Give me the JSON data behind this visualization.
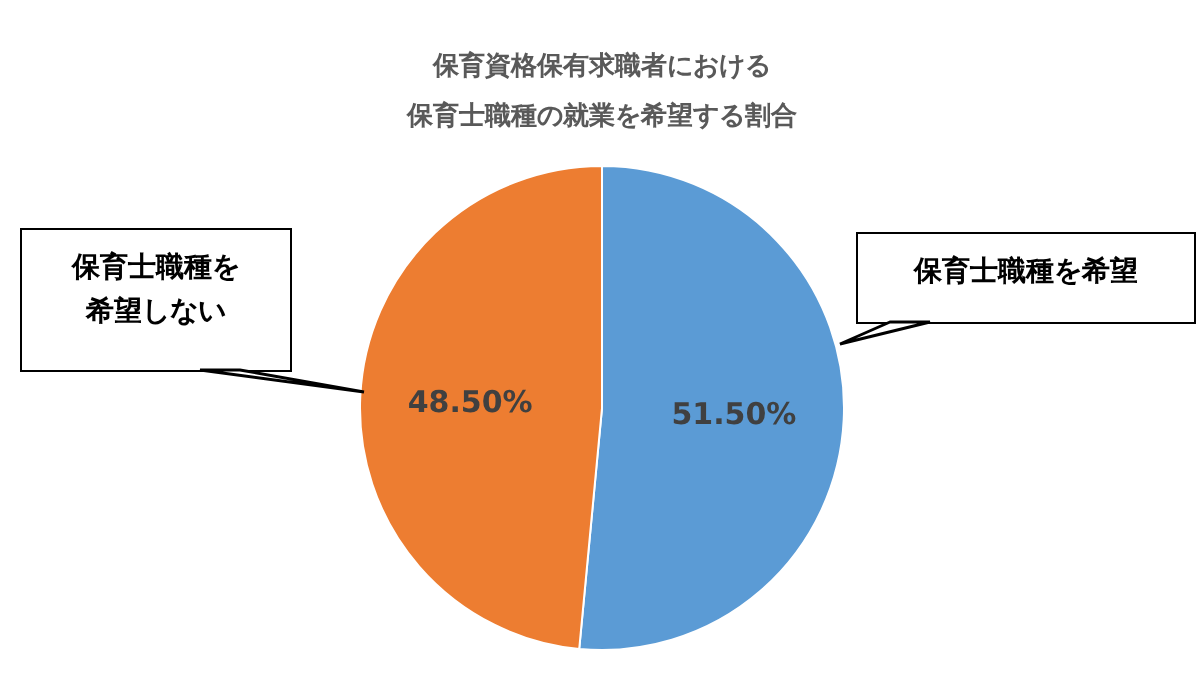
{
  "chart_data": {
    "type": "pie",
    "title": "保育資格保有求職者における",
    "subtitle": "保育士職種の就業を希望する割合",
    "categories": [
      "保育士職種を希望",
      "保育士職種を希望しない"
    ],
    "values": [
      51.5,
      48.5
    ],
    "colors": [
      "#5b9bd5",
      "#ed7d31"
    ],
    "value_labels": [
      "51.50%",
      "48.50%"
    ],
    "legend": false
  }
}
